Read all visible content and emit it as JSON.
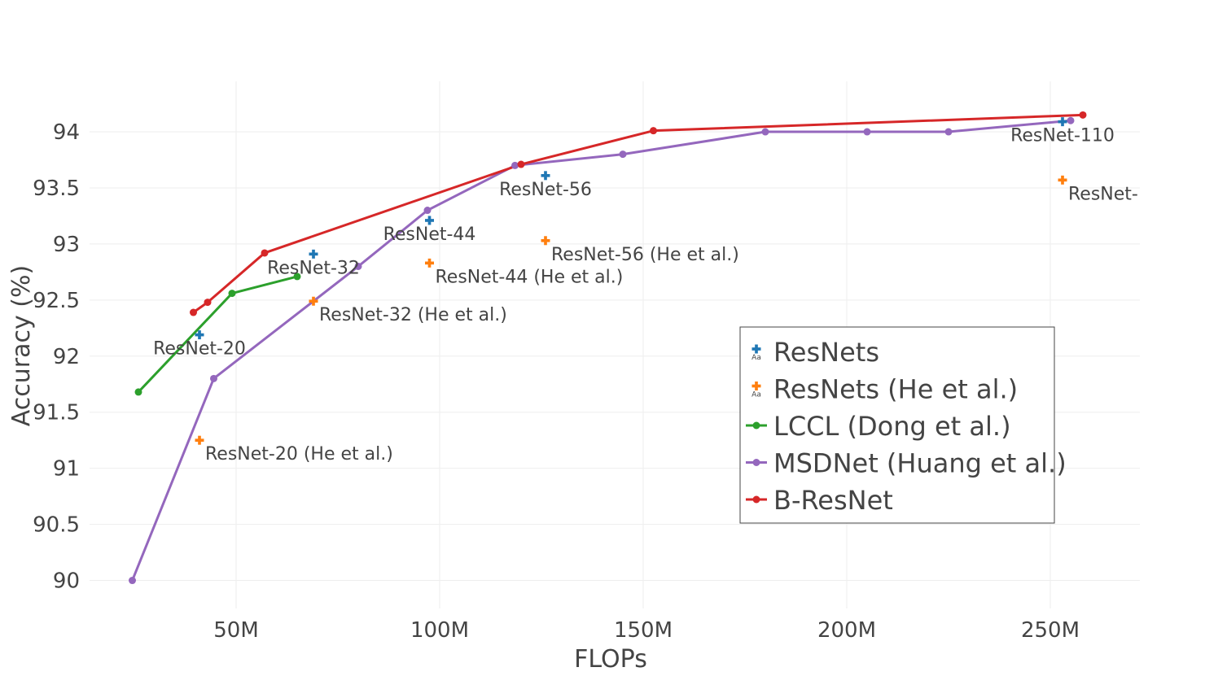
{
  "chart_data": {
    "type": "line",
    "title": "",
    "xlabel": "FLOPs",
    "ylabel": "Accuracy (%)",
    "xlim": [
      14,
      272
    ],
    "ylim": [
      89.75,
      94.45
    ],
    "x_ticks": [
      {
        "value": 50,
        "label": "50M"
      },
      {
        "value": 100,
        "label": "100M"
      },
      {
        "value": 150,
        "label": "150M"
      },
      {
        "value": 200,
        "label": "200M"
      },
      {
        "value": 250,
        "label": "250M"
      }
    ],
    "y_ticks": [
      {
        "value": 90,
        "label": "90"
      },
      {
        "value": 90.5,
        "label": "90.5"
      },
      {
        "value": 91,
        "label": "91"
      },
      {
        "value": 91.5,
        "label": "91.5"
      },
      {
        "value": 92,
        "label": "92"
      },
      {
        "value": 92.5,
        "label": "92.5"
      },
      {
        "value": 93,
        "label": "93"
      },
      {
        "value": 93.5,
        "label": "93.5"
      },
      {
        "value": 94,
        "label": "94"
      }
    ],
    "grid": true,
    "legend_position": "bottom-right",
    "series": [
      {
        "name": "ResNets",
        "mode": "markers+text",
        "color": "#1f77b4",
        "x": [
          41,
          69,
          97.5,
          126,
          253
        ],
        "y": [
          92.19,
          92.91,
          93.21,
          93.61,
          94.09
        ],
        "text": [
          "ResNet-20",
          "ResNet-32",
          "ResNet-44",
          "ResNet-56",
          "ResNet-110"
        ],
        "textposition": "bottom center"
      },
      {
        "name": "ResNets (He et al.)",
        "mode": "markers+text",
        "color": "#ff7f0e",
        "x": [
          41,
          69,
          97.5,
          126,
          253
        ],
        "y": [
          91.25,
          92.49,
          92.83,
          93.03,
          93.57
        ],
        "text": [
          "ResNet-20 (He et al.)",
          "ResNet-32 (He et al.)",
          "ResNet-44  (He et al.)",
          "ResNet-56  (He et al.)",
          "ResNet-"
        ],
        "textposition": "bottom right"
      },
      {
        "name": "LCCL (Dong et al.)",
        "mode": "lines+markers",
        "color": "#2ca02c",
        "x": [
          26,
          49,
          65
        ],
        "y": [
          91.68,
          92.56,
          92.71
        ]
      },
      {
        "name": "MSDNet (Huang et al.)",
        "mode": "lines+markers",
        "color": "#9467bd",
        "x": [
          24.5,
          44.5,
          80,
          97,
          118.5,
          145,
          180,
          205,
          225,
          255
        ],
        "y": [
          90.0,
          91.8,
          92.8,
          93.3,
          93.7,
          93.8,
          94.0,
          94.0,
          94.0,
          94.1
        ]
      },
      {
        "name": "B-ResNet",
        "mode": "lines+markers",
        "color": "#d62728",
        "x": [
          39.5,
          43,
          57,
          120,
          152.5,
          258
        ],
        "y": [
          92.39,
          92.48,
          92.92,
          93.71,
          94.01,
          94.15
        ]
      }
    ]
  }
}
